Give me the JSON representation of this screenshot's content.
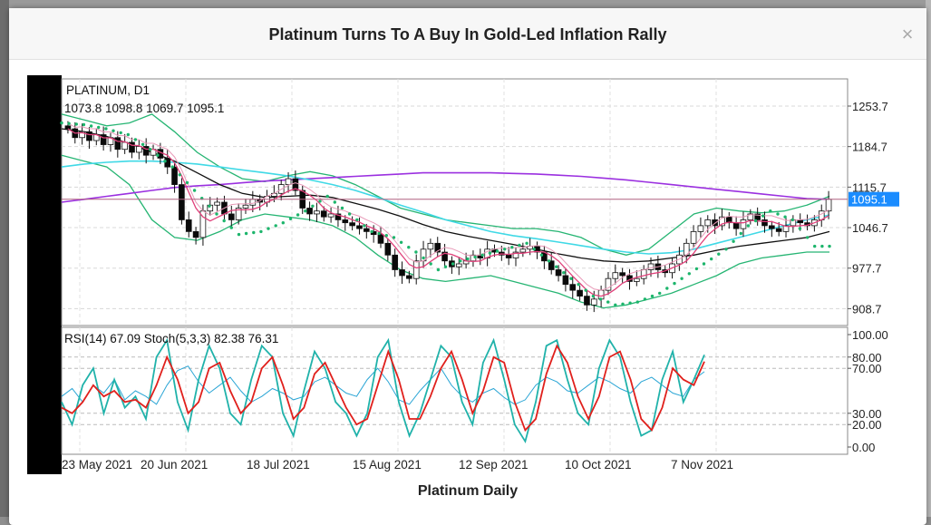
{
  "modal": {
    "title": "Platinum Turns To A Buy In Gold-Led Inflation Rally",
    "caption": "Platinum Daily",
    "close_glyph": "×"
  },
  "chart_data": {
    "type": "candlestick",
    "symbol_label": "PLATINUM, D1",
    "ohlc_label": "1073.8 1098.8 1069.7 1095.1",
    "y_ticks": [
      "1253.7",
      "1184.7",
      "1115.7",
      "1046.7",
      "977.7",
      "908.7"
    ],
    "y_tick_values": [
      1253.7,
      1184.7,
      1115.7,
      1046.7,
      977.7,
      908.7
    ],
    "ylim": [
      880,
      1300
    ],
    "current_price": 1095.1,
    "current_price_label": "1095.1",
    "x_labels": [
      "23 May 2021",
      "20 Jun 2021",
      "18 Jul 2021",
      "15 Aug 2021",
      "12 Sep 2021",
      "10 Oct 2021",
      "7 Nov 2021"
    ],
    "colors": {
      "bull": "#0a0a0a",
      "bear": "#0a0a0a",
      "bollinger": "#26b573",
      "sar": "#1db56c",
      "ma_fast": "#e0407a",
      "ma_mid": "#111111",
      "ma_slow": "#40d9e6",
      "ma_long": "#9b30e0",
      "price_line": "#b06080",
      "price_box": "#1a8cff",
      "rsi": "#2aa5d5",
      "stoch_k": "#20b2aa",
      "stoch_d": "#e0201c"
    },
    "price_closes": [
      1215,
      1200,
      1210,
      1195,
      1205,
      1188,
      1200,
      1180,
      1192,
      1175,
      1185,
      1170,
      1180,
      1165,
      1150,
      1120,
      1060,
      1040,
      1030,
      1075,
      1085,
      1090,
      1070,
      1060,
      1080,
      1085,
      1095,
      1090,
      1100,
      1105,
      1120,
      1130,
      1110,
      1080,
      1070,
      1075,
      1065,
      1070,
      1060,
      1055,
      1050,
      1045,
      1040,
      1035,
      1020,
      1000,
      975,
      965,
      960,
      990,
      1010,
      1020,
      1005,
      990,
      980,
      985,
      990,
      1000,
      995,
      1010,
      1005,
      1000,
      995,
      1005,
      1010,
      1015,
      1005,
      990,
      975,
      965,
      950,
      940,
      930,
      915,
      925,
      940,
      960,
      970,
      965,
      955,
      960,
      975,
      985,
      975,
      970,
      985,
      1000,
      1020,
      1040,
      1050,
      1060,
      1050,
      1065,
      1055,
      1045,
      1060,
      1070,
      1060,
      1050,
      1045,
      1040,
      1050,
      1060,
      1055,
      1050,
      1060,
      1075,
      1095
    ],
    "ma_long_values": [
      1090,
      1095,
      1100,
      1105,
      1110,
      1115,
      1118,
      1120,
      1123,
      1126,
      1128,
      1130,
      1132,
      1134,
      1136,
      1138,
      1140,
      1140,
      1140,
      1140,
      1139,
      1138,
      1136,
      1134,
      1131,
      1128,
      1124,
      1120,
      1116,
      1112,
      1108,
      1104,
      1100,
      1096,
      1095
    ],
    "ma_slow_values": [
      1150,
      1155,
      1158,
      1160,
      1160,
      1158,
      1155,
      1150,
      1145,
      1140,
      1135,
      1128,
      1120,
      1110,
      1098,
      1085,
      1073,
      1060,
      1050,
      1040,
      1033,
      1028,
      1022,
      1016,
      1010,
      1005,
      1002,
      1004,
      1010,
      1020,
      1030,
      1040,
      1050,
      1060,
      1068
    ],
    "ma_mid_values": [
      1215,
      1210,
      1202,
      1190,
      1175,
      1160,
      1140,
      1120,
      1105,
      1098,
      1100,
      1102,
      1098,
      1088,
      1078,
      1066,
      1052,
      1040,
      1032,
      1025,
      1018,
      1010,
      1002,
      995,
      990,
      988,
      990,
      995,
      1000,
      1008,
      1015,
      1020,
      1025,
      1030,
      1040
    ],
    "bb_upper_values": [
      1240,
      1230,
      1220,
      1225,
      1240,
      1210,
      1175,
      1150,
      1130,
      1125,
      1135,
      1142,
      1135,
      1120,
      1100,
      1080,
      1070,
      1060,
      1055,
      1050,
      1045,
      1045,
      1040,
      1030,
      1010,
      1000,
      1010,
      1040,
      1070,
      1080,
      1075,
      1072,
      1075,
      1085,
      1100
    ],
    "bb_lower_values": [
      1170,
      1160,
      1150,
      1120,
      1060,
      1030,
      1025,
      1040,
      1060,
      1070,
      1065,
      1060,
      1050,
      1030,
      1000,
      975,
      960,
      955,
      960,
      965,
      955,
      945,
      935,
      920,
      910,
      915,
      925,
      935,
      950,
      965,
      985,
      995,
      1000,
      1005,
      1005
    ],
    "sar_values": [
      1225,
      1222,
      1215,
      1205,
      1180,
      1150,
      1110,
      1070,
      1035,
      1040,
      1055,
      1075,
      1100,
      1070,
      1040,
      1030,
      1005,
      975,
      990,
      1000,
      1010,
      1020,
      990,
      960,
      930,
      915,
      920,
      935,
      960,
      985,
      1010,
      1050,
      1075,
      1060,
      1015
    ],
    "rsi_label": "RSI(14) 67.09 Stoch(5,3,3) 82.38 76.31",
    "rsi_ticks": [
      "100.00",
      "80.00",
      "70.00",
      "30.00",
      "20.00",
      "0.00"
    ],
    "rsi_tick_values": [
      100,
      80,
      70,
      30,
      20,
      0
    ],
    "rsi_values": [
      45,
      52,
      40,
      55,
      48,
      60,
      42,
      50,
      45,
      38,
      55,
      68,
      72,
      58,
      48,
      55,
      62,
      50,
      40,
      45,
      52,
      48,
      42,
      45,
      58,
      62,
      55,
      48,
      45,
      60,
      70,
      58,
      42,
      38,
      50,
      60,
      70,
      55,
      45,
      40,
      48,
      52,
      44,
      38,
      42,
      55,
      62,
      58,
      50,
      48,
      55,
      62,
      58,
      52,
      48,
      58,
      62,
      55,
      48,
      45,
      60,
      67
    ],
    "stoch_k_values": [
      40,
      20,
      55,
      70,
      30,
      60,
      35,
      45,
      25,
      80,
      95,
      40,
      15,
      60,
      90,
      70,
      30,
      20,
      60,
      90,
      80,
      30,
      10,
      50,
      85,
      70,
      40,
      30,
      10,
      30,
      80,
      95,
      40,
      10,
      30,
      60,
      90,
      80,
      40,
      20,
      75,
      95,
      60,
      20,
      5,
      40,
      90,
      95,
      60,
      30,
      20,
      70,
      95,
      80,
      40,
      10,
      15,
      60,
      85,
      40,
      60,
      82
    ],
    "stoch_d_values": [
      35,
      30,
      40,
      55,
      45,
      50,
      40,
      42,
      35,
      55,
      80,
      60,
      30,
      40,
      70,
      75,
      50,
      30,
      40,
      70,
      80,
      55,
      25,
      35,
      65,
      75,
      55,
      35,
      20,
      25,
      55,
      85,
      60,
      25,
      25,
      45,
      70,
      85,
      60,
      30,
      50,
      80,
      75,
      40,
      15,
      25,
      65,
      90,
      75,
      45,
      25,
      45,
      80,
      85,
      60,
      25,
      15,
      35,
      70,
      60,
      55,
      76
    ]
  }
}
